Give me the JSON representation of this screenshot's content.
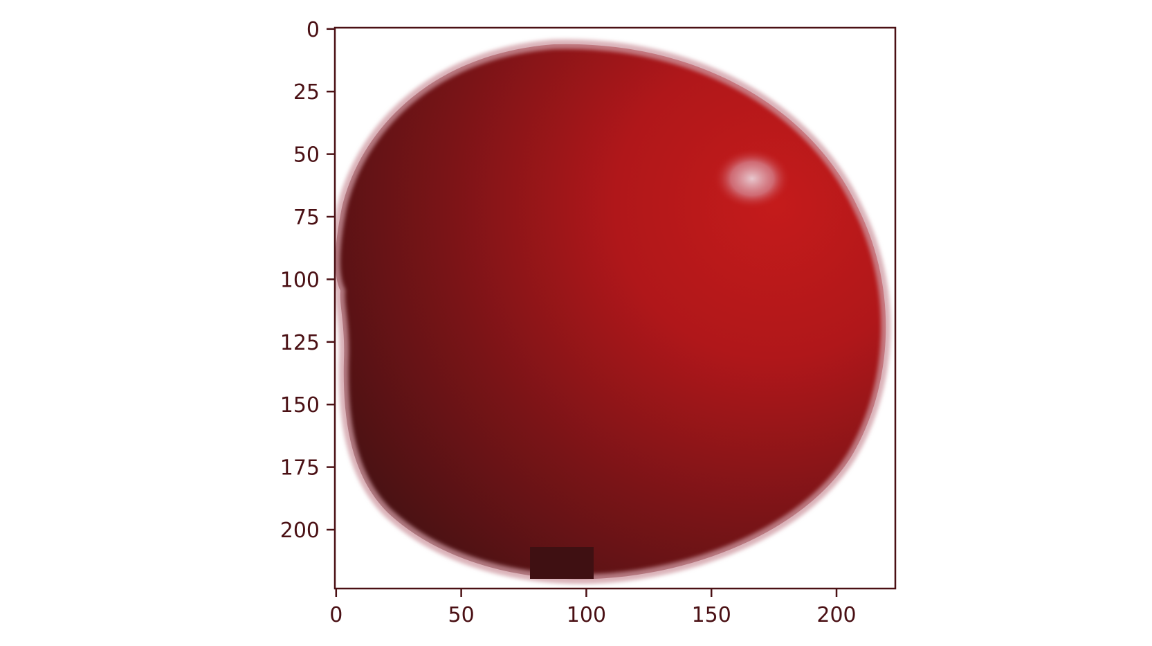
{
  "chart_data": {
    "type": "image",
    "title": "",
    "xlabel": "",
    "ylabel": "",
    "xlim": [
      -0.5,
      223.5
    ],
    "ylim": [
      223.5,
      -0.5
    ],
    "x_ticks": [
      0,
      50,
      100,
      150,
      200
    ],
    "y_ticks": [
      0,
      25,
      50,
      75,
      100,
      125,
      150,
      175,
      200
    ],
    "x_tick_labels": [
      "0",
      "50",
      "100",
      "150",
      "200"
    ],
    "y_tick_labels": [
      "0",
      "25",
      "50",
      "75",
      "100",
      "125",
      "150",
      "175",
      "200"
    ],
    "grid": false,
    "image_content": "red-apple",
    "axis_color": "#4a1014",
    "colors": {
      "apple_bright": "#c21a1a",
      "apple_mid": "#8e1518",
      "apple_dark": "#4a1214",
      "apple_rim": "#c9848d",
      "highlight": "#e9c9d1"
    }
  }
}
